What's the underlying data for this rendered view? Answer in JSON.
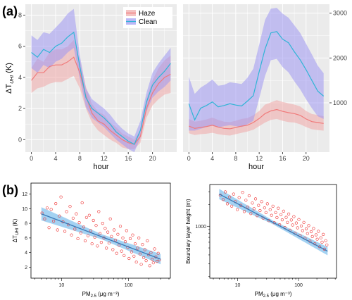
{
  "labels": {
    "panel_a": "(a)",
    "panel_b": "(b)"
  },
  "colors": {
    "haze_line": "#f07a7a",
    "haze_fill": "#f0a8a8",
    "clean_line": "#2fb5d6",
    "clean_fill": "#9f98f2",
    "panel_bg": "#ebebeb",
    "grid": "#ffffff",
    "scatter_point": "#ee3030",
    "fit_line": "#3a78b5",
    "fit_band": "#86c3ee"
  },
  "chart_data": [
    {
      "type": "line",
      "x": [
        0,
        1,
        2,
        3,
        4,
        5,
        6,
        7,
        8,
        9,
        10,
        11,
        12,
        13,
        14,
        15,
        16,
        17,
        18,
        19,
        20,
        21,
        22,
        23
      ],
      "xlabel": "hour",
      "ylabel": "ΔT_UHI (K)",
      "xticks": [
        0,
        4,
        8,
        12,
        16,
        20
      ],
      "yticks": [
        0,
        2,
        4,
        6,
        8
      ],
      "ylim": [
        -0.8,
        8.7
      ],
      "xlim": [
        -1,
        24
      ],
      "legend": {
        "position": "top-right",
        "entries": [
          "Haze",
          "Clean"
        ]
      },
      "series": [
        {
          "name": "Haze",
          "values": [
            3.8,
            4.3,
            4.3,
            4.7,
            4.8,
            4.8,
            5.0,
            5.3,
            4.3,
            2.8,
            1.7,
            1.2,
            1.0,
            0.6,
            0.3,
            0.0,
            -0.2,
            -0.3,
            0.2,
            2.0,
            3.0,
            3.6,
            4.0,
            4.2
          ],
          "lower": [
            3.0,
            3.3,
            3.4,
            3.6,
            3.7,
            3.7,
            3.9,
            4.1,
            3.3,
            2.0,
            1.1,
            0.6,
            0.3,
            0.0,
            -0.2,
            -0.5,
            -0.6,
            -0.6,
            -0.2,
            1.4,
            2.2,
            2.6,
            2.9,
            3.0
          ],
          "upper": [
            4.6,
            5.2,
            5.0,
            5.6,
            5.8,
            5.8,
            6.0,
            6.4,
            5.1,
            3.4,
            2.3,
            1.8,
            1.6,
            1.1,
            0.8,
            0.4,
            0.2,
            0.0,
            0.6,
            2.6,
            3.8,
            4.6,
            5.1,
            5.4
          ]
        },
        {
          "name": "Clean",
          "values": [
            5.6,
            5.3,
            5.8,
            5.6,
            6.0,
            6.2,
            6.6,
            6.9,
            4.7,
            2.7,
            2.0,
            1.7,
            1.4,
            1.0,
            0.5,
            0.2,
            -0.1,
            -0.3,
            0.6,
            2.4,
            3.5,
            4.0,
            4.4,
            4.9
          ],
          "lower": [
            4.6,
            4.3,
            4.8,
            4.6,
            5.0,
            5.2,
            5.6,
            5.9,
            3.9,
            2.1,
            1.4,
            1.1,
            0.8,
            0.4,
            0.0,
            -0.3,
            -0.6,
            -0.8,
            0.1,
            1.8,
            2.7,
            3.1,
            3.4,
            3.8
          ],
          "upper": [
            6.7,
            6.4,
            6.9,
            6.8,
            7.2,
            7.6,
            8.1,
            8.4,
            5.4,
            3.3,
            2.6,
            2.3,
            2.0,
            1.6,
            1.1,
            0.7,
            0.4,
            0.2,
            1.2,
            3.0,
            4.3,
            4.9,
            5.4,
            5.9
          ]
        }
      ]
    },
    {
      "type": "line",
      "x": [
        0,
        1,
        2,
        3,
        4,
        5,
        6,
        7,
        8,
        9,
        10,
        11,
        12,
        13,
        14,
        15,
        16,
        17,
        18,
        19,
        20,
        21,
        22,
        23
      ],
      "xlabel": "hour",
      "ylabel": "Boundary layer height (m)",
      "xticks": [
        0,
        4,
        8,
        12,
        16,
        20
      ],
      "yticks": [
        1000,
        2000,
        3000
      ],
      "ylim": [
        -100,
        3200
      ],
      "xlim": [
        -1,
        24
      ],
      "series": [
        {
          "name": "Haze",
          "values": [
            480,
            430,
            450,
            470,
            500,
            460,
            430,
            420,
            450,
            480,
            500,
            560,
            650,
            760,
            820,
            850,
            810,
            780,
            760,
            720,
            640,
            580,
            560,
            540
          ],
          "lower": [
            320,
            280,
            300,
            310,
            330,
            300,
            280,
            270,
            300,
            330,
            360,
            400,
            480,
            560,
            620,
            640,
            600,
            570,
            560,
            520,
            460,
            410,
            390,
            380
          ],
          "upper": [
            640,
            580,
            600,
            630,
            670,
            620,
            580,
            570,
            600,
            640,
            660,
            720,
            820,
            960,
            1010,
            1060,
            1020,
            990,
            960,
            920,
            820,
            750,
            730,
            700
          ]
        },
        {
          "name": "Clean",
          "values": [
            980,
            620,
            880,
            940,
            1020,
            910,
            940,
            980,
            950,
            930,
            1040,
            1160,
            1700,
            2200,
            2560,
            2590,
            2420,
            2340,
            2140,
            1960,
            1740,
            1500,
            1260,
            1150
          ],
          "lower": [
            380,
            380,
            420,
            460,
            490,
            450,
            480,
            500,
            480,
            460,
            520,
            600,
            1100,
            1600,
            1950,
            1980,
            1800,
            1680,
            1480,
            1300,
            1080,
            880,
            700,
            640
          ],
          "upper": [
            1580,
            1200,
            1340,
            1420,
            1520,
            1380,
            1400,
            1460,
            1440,
            1420,
            1560,
            1760,
            2300,
            2850,
            3100,
            3120,
            2990,
            2900,
            2730,
            2560,
            2320,
            2080,
            1830,
            1660
          ]
        }
      ]
    },
    {
      "type": "scatter",
      "xlabel": "PM2.5 (μg m⁻³)",
      "ylabel": "ΔT_UHI (K)",
      "xscale": "log",
      "xlim": [
        3.5,
        420
      ],
      "ylim": [
        0.5,
        13.5
      ],
      "xticks": [
        10,
        100
      ],
      "yticks": [
        2,
        4,
        6,
        8,
        10,
        12
      ],
      "fit": {
        "x": [
          5,
          300
        ],
        "y": [
          9.3,
          3.1
        ],
        "band_halfwidth": [
          0.9,
          0.35,
          0.7
        ]
      },
      "points": [
        [
          5.1,
          9.4
        ],
        [
          5.6,
          8.6
        ],
        [
          6.1,
          10.1
        ],
        [
          6.5,
          7.4
        ],
        [
          7.0,
          9.9
        ],
        [
          7.6,
          8.3
        ],
        [
          8.2,
          10.7
        ],
        [
          8.7,
          7.1
        ],
        [
          9.3,
          9.0
        ],
        [
          9.8,
          11.6
        ],
        [
          10.5,
          8.2
        ],
        [
          11.2,
          6.9
        ],
        [
          11.9,
          9.6
        ],
        [
          12.6,
          7.8
        ],
        [
          13.4,
          10.3
        ],
        [
          14.1,
          6.4
        ],
        [
          14.9,
          8.7
        ],
        [
          15.8,
          7.2
        ],
        [
          16.6,
          9.3
        ],
        [
          17.5,
          5.9
        ],
        [
          18.4,
          8.1
        ],
        [
          19.4,
          6.7
        ],
        [
          20.3,
          10.8
        ],
        [
          21.4,
          7.5
        ],
        [
          22.5,
          5.6
        ],
        [
          23.6,
          8.8
        ],
        [
          24.8,
          6.3
        ],
        [
          26.0,
          9.1
        ],
        [
          27.2,
          7.0
        ],
        [
          28.5,
          5.2
        ],
        [
          29.9,
          8.4
        ],
        [
          31.3,
          6.1
        ],
        [
          32.8,
          7.7
        ],
        [
          34.3,
          4.9
        ],
        [
          35.9,
          9.6
        ],
        [
          37.5,
          6.6
        ],
        [
          39.2,
          5.4
        ],
        [
          41.0,
          8.0
        ],
        [
          42.9,
          6.0
        ],
        [
          44.8,
          7.3
        ],
        [
          46.8,
          4.6
        ],
        [
          48.9,
          6.8
        ],
        [
          51.1,
          5.3
        ],
        [
          53.4,
          8.6
        ],
        [
          55.7,
          6.2
        ],
        [
          58.2,
          4.4
        ],
        [
          60.8,
          7.1
        ],
        [
          63.5,
          5.7
        ],
        [
          66.3,
          3.9
        ],
        [
          69.2,
          6.5
        ],
        [
          72.2,
          5.0
        ],
        [
          75.4,
          7.6
        ],
        [
          78.7,
          4.2
        ],
        [
          82.1,
          6.0
        ],
        [
          85.7,
          3.6
        ],
        [
          89.4,
          5.5
        ],
        [
          93.3,
          7.0
        ],
        [
          97.3,
          4.7
        ],
        [
          101.5,
          3.2
        ],
        [
          105.9,
          5.9
        ],
        [
          110.5,
          4.1
        ],
        [
          115.2,
          6.4
        ],
        [
          120.2,
          3.5
        ],
        [
          125.3,
          5.2
        ],
        [
          130.7,
          2.7
        ],
        [
          136.3,
          4.6
        ],
        [
          142.1,
          6.0
        ],
        [
          148.2,
          3.8
        ],
        [
          154.5,
          2.4
        ],
        [
          161.1,
          5.1
        ],
        [
          168.0,
          3.3
        ],
        [
          175.1,
          4.4
        ],
        [
          182.6,
          2.9
        ],
        [
          190.3,
          5.6
        ],
        [
          198.4,
          3.7
        ],
        [
          206.8,
          2.2
        ],
        [
          215.6,
          4.0
        ],
        [
          224.7,
          3.1
        ],
        [
          234.2,
          2.6
        ],
        [
          244.1,
          4.5
        ],
        [
          254.4,
          3.4
        ],
        [
          265.1,
          2.8
        ],
        [
          276.3,
          3.9
        ],
        [
          288.0,
          3.0
        ]
      ]
    },
    {
      "type": "scatter",
      "xlabel": "PM2.5 (μg m⁻³)",
      "ylabel": "Boundary layer height (m)",
      "xscale": "log",
      "yscale": "log",
      "xlim": [
        3.5,
        420
      ],
      "ylim": [
        190,
        3800
      ],
      "xticks": [
        10,
        100
      ],
      "yticks": [
        1000
      ],
      "fit": {
        "x": [
          5,
          300
        ],
        "y": [
          2800,
          450
        ],
        "band_halfwidth_factor": [
          1.18,
          1.06,
          1.14
        ]
      },
      "points": [
        [
          5.2,
          2700
        ],
        [
          5.8,
          2350
        ],
        [
          6.3,
          3000
        ],
        [
          6.8,
          2050
        ],
        [
          7.4,
          2550
        ],
        [
          8.0,
          1900
        ],
        [
          8.6,
          2800
        ],
        [
          9.2,
          2200
        ],
        [
          9.9,
          1700
        ],
        [
          10.6,
          2500
        ],
        [
          11.3,
          1950
        ],
        [
          12.1,
          2950
        ],
        [
          12.9,
          1600
        ],
        [
          13.7,
          2300
        ],
        [
          14.6,
          1850
        ],
        [
          15.5,
          2650
        ],
        [
          16.5,
          1500
        ],
        [
          17.5,
          2100
        ],
        [
          18.6,
          1750
        ],
        [
          19.7,
          2400
        ],
        [
          20.9,
          1400
        ],
        [
          22.1,
          1950
        ],
        [
          23.4,
          1650
        ],
        [
          24.8,
          2200
        ],
        [
          26.2,
          1300
        ],
        [
          27.7,
          1800
        ],
        [
          29.2,
          1550
        ],
        [
          30.8,
          2050
        ],
        [
          32.5,
          1200
        ],
        [
          34.3,
          1700
        ],
        [
          36.1,
          1420
        ],
        [
          38.0,
          1900
        ],
        [
          40.0,
          1120
        ],
        [
          42.1,
          1550
        ],
        [
          44.3,
          1320
        ],
        [
          46.6,
          1780
        ],
        [
          49.0,
          1050
        ],
        [
          51.5,
          1450
        ],
        [
          54.1,
          1230
        ],
        [
          56.8,
          1620
        ],
        [
          59.7,
          960
        ],
        [
          62.7,
          1330
        ],
        [
          65.8,
          1130
        ],
        [
          69.1,
          1480
        ],
        [
          72.5,
          880
        ],
        [
          76.1,
          1220
        ],
        [
          79.8,
          1040
        ],
        [
          83.7,
          1360
        ],
        [
          87.8,
          800
        ],
        [
          92.1,
          1110
        ],
        [
          96.5,
          950
        ],
        [
          101.2,
          1240
        ],
        [
          106.1,
          740
        ],
        [
          111.2,
          1010
        ],
        [
          116.5,
          870
        ],
        [
          122.1,
          1130
        ],
        [
          127.9,
          680
        ],
        [
          134.0,
          920
        ],
        [
          140.3,
          790
        ],
        [
          147.0,
          1020
        ],
        [
          153.9,
          620
        ],
        [
          161.2,
          840
        ],
        [
          168.8,
          720
        ],
        [
          176.7,
          930
        ],
        [
          185.0,
          570
        ],
        [
          193.6,
          760
        ],
        [
          202.7,
          660
        ],
        [
          212.1,
          850
        ],
        [
          222.0,
          520
        ],
        [
          232.4,
          690
        ],
        [
          243.2,
          600
        ],
        [
          254.5,
          770
        ],
        [
          266.3,
          480
        ],
        [
          278.6,
          630
        ],
        [
          291.5,
          550
        ]
      ]
    }
  ]
}
